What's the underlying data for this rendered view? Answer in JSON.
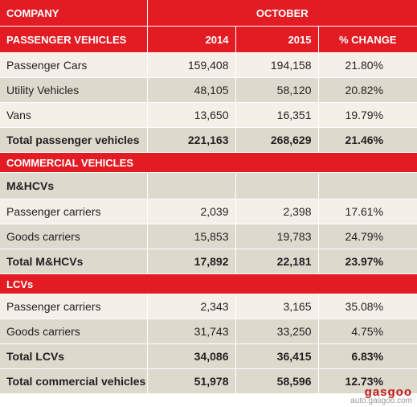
{
  "header": {
    "company": "COMPANY",
    "october": "OCTOBER",
    "passenger_vehicles": "PASSENGER VEHICLES",
    "year1": "2014",
    "year2": "2015",
    "change": "% CHANGE"
  },
  "passenger_rows": [
    {
      "label": "Passenger Cars",
      "y2014": "159,408",
      "y2015": "194,158",
      "change": "21.80%"
    },
    {
      "label": "Utility Vehicles",
      "y2014": "48,105",
      "y2015": "58,120",
      "change": "20.82%"
    },
    {
      "label": "Vans",
      "y2014": "13,650",
      "y2015": "16,351",
      "change": "19.79%"
    }
  ],
  "passenger_total": {
    "label": "Total passenger vehicles",
    "y2014": "221,163",
    "y2015": "268,629",
    "change": "21.46%"
  },
  "commercial_header": "COMMERCIAL VEHICLES",
  "mhcv": {
    "title": "M&HCVs",
    "rows": [
      {
        "label": "Passenger carriers",
        "y2014": "2,039",
        "y2015": "2,398",
        "change": "17.61%"
      },
      {
        "label": "Goods carriers",
        "y2014": "15,853",
        "y2015": "19,783",
        "change": "24.79%"
      }
    ],
    "total": {
      "label": "Total M&HCVs",
      "y2014": "17,892",
      "y2015": "22,181",
      "change": "23.97%"
    }
  },
  "lcv": {
    "title": "LCVs",
    "rows": [
      {
        "label": "Passenger carriers",
        "y2014": "2,343",
        "y2015": "3,165",
        "change": "35.08%"
      },
      {
        "label": "Goods carriers",
        "y2014": "31,743",
        "y2015": "33,250",
        "change": "4.75%"
      }
    ],
    "total": {
      "label": "Total LCVs",
      "y2014": "34,086",
      "y2015": "36,415",
      "change": "6.83%"
    }
  },
  "commercial_total": {
    "label": "Total commercial vehicles",
    "y2014": "51,978",
    "y2015": "58,596",
    "change": "12.73%"
  },
  "watermark": {
    "logo": "gasgoo",
    "url": "auto.gasgoo.com"
  },
  "colors": {
    "accent_red": "#e31b23",
    "row_light": "#f4f0e8",
    "row_dark": "#ded9cd"
  }
}
